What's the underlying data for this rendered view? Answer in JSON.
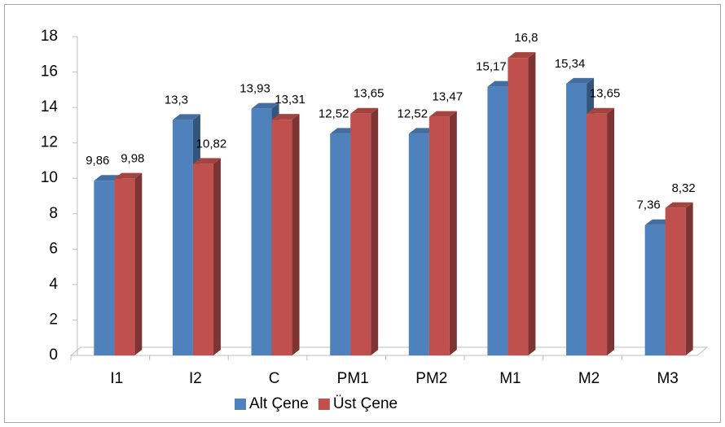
{
  "chart_data": {
    "type": "bar3d",
    "categories": [
      "I1",
      "I2",
      "C",
      "PM1",
      "PM2",
      "M1",
      "M2",
      "M3"
    ],
    "series": [
      {
        "name": "Alt Çene",
        "color": "#4f81bd",
        "values": [
          9.86,
          13.3,
          13.93,
          12.52,
          12.52,
          15.17,
          15.34,
          7.36
        ],
        "value_labels": [
          "9,86",
          "13,3",
          "13,93",
          "12,52",
          "12,52",
          "15,17",
          "15,34",
          "7,36"
        ]
      },
      {
        "name": "Üst Çene",
        "color": "#c0504d",
        "values": [
          9.98,
          10.82,
          13.31,
          13.65,
          13.47,
          16.8,
          13.65,
          8.32
        ],
        "value_labels": [
          "9,98",
          "10,82",
          "13,31",
          "13,65",
          "13,47",
          "16,8",
          "13,65",
          "8,32"
        ]
      }
    ],
    "ylim": [
      0,
      18
    ],
    "yticks": [
      0,
      2,
      4,
      6,
      8,
      10,
      12,
      14,
      16,
      18
    ],
    "grid": false,
    "legend": "bottom"
  }
}
